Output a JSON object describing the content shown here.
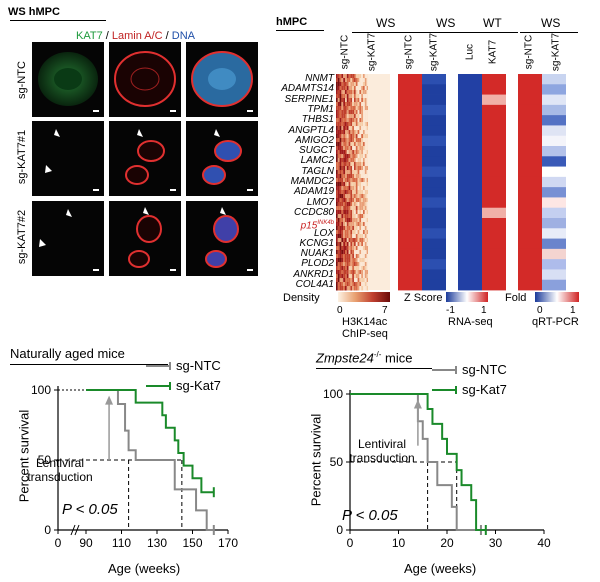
{
  "panelA": {
    "title": "WS hMPC",
    "channels": [
      {
        "label": "KAT7",
        "color": "#1e9a3c"
      },
      {
        "label": "Lamin A/C",
        "color": "#c02222"
      },
      {
        "label": "DNA",
        "color": "#1f4fa8"
      }
    ],
    "sep": " / ",
    "rows": [
      "sg-NTC",
      "sg-KAT7#1",
      "sg-KAT7#2"
    ]
  },
  "panelB": {
    "title": "hMPC",
    "group_headers": [
      "WS",
      "WS",
      "WT",
      "WS"
    ],
    "columns": [
      "sg-NTC",
      "sg-KAT7",
      "sg-NTC",
      "sg-KAT7",
      "Luc",
      "KAT7",
      "sg-NTC",
      "sg-KAT7"
    ],
    "genes": [
      "NNMT",
      "ADAMTS14",
      "SERPINE1",
      "TPM1",
      "THBS1",
      "ANGPTL4",
      "AMIGO2",
      "SUGCT",
      "LAMC2",
      "TAGLN",
      "MAMDC2",
      "ADAM19",
      "LMO7",
      "CCDC80",
      "p15INK4b",
      "LOX",
      "KCNG1",
      "NUAK1",
      "PLOD2",
      "ANKRD1",
      "COL4A1"
    ],
    "gene_p15_main": "p15",
    "gene_p15_sup": "INK4b",
    "legends": {
      "density": {
        "title": "Density",
        "min": "0",
        "max": "7",
        "caption1": "H3K14ac",
        "caption2": "ChIP-seq"
      },
      "zscore": {
        "title": "Z Score",
        "min": "-1",
        "max": "1",
        "caption": "RNA-seq"
      },
      "fold": {
        "title": "Fold",
        "min": "0",
        "max": "1",
        "caption": "qRT-PCR"
      }
    }
  },
  "panelC": {
    "title": "Naturally aged mice",
    "legend": [
      {
        "label": "sg-NTC",
        "color": "#888888"
      },
      {
        "label": "sg-Kat7",
        "color": "#1a8a2a"
      }
    ],
    "annotation": "Lentiviral transduction",
    "annotation_line1": "Lentiviral",
    "annotation_line2": "transduction",
    "pvalue": "P < 0.05",
    "ylabel": "Percent survival",
    "xlabel": "Age (weeks)",
    "yticks": [
      "0",
      "50",
      "100"
    ],
    "xticks": [
      "0",
      "90",
      "110",
      "130",
      "150",
      "170"
    ]
  },
  "panelD": {
    "title": "Zmpste24-/- mice",
    "title_main": "Zmpste24",
    "title_sup": "-/-",
    "title_rest": " mice",
    "legend": [
      {
        "label": "sg-NTC",
        "color": "#888888"
      },
      {
        "label": "sg-Kat7",
        "color": "#1a8a2a"
      }
    ],
    "annotation_line1": "Lentiviral",
    "annotation_line2": "transduction",
    "pvalue": "P < 0.05",
    "ylabel": "Percent survival",
    "xlabel": "Age (weeks)",
    "yticks": [
      "0",
      "50",
      "100"
    ],
    "xticks": [
      "0",
      "10",
      "20",
      "30",
      "40"
    ]
  },
  "chart_data": [
    {
      "type": "line",
      "title": "Naturally aged mice",
      "xlabel": "Age (weeks)",
      "ylabel": "Percent survival",
      "xlim": [
        90,
        170
      ],
      "ylim": [
        0,
        100
      ],
      "series": [
        {
          "name": "sg-NTC",
          "color": "#888888",
          "x": [
            90,
            108,
            108,
            112,
            112,
            114,
            114,
            118,
            118,
            140,
            140,
            152,
            152,
            158,
            158,
            162
          ],
          "y": [
            100,
            100,
            90,
            90,
            71,
            71,
            57,
            57,
            50,
            50,
            29,
            29,
            14,
            14,
            0,
            0
          ]
        },
        {
          "name": "sg-Kat7",
          "color": "#1a8a2a",
          "x": [
            90,
            118,
            118,
            133,
            133,
            135,
            135,
            140,
            140,
            142,
            142,
            145,
            145,
            150,
            150,
            155,
            155,
            162
          ],
          "y": [
            100,
            100,
            91,
            91,
            82,
            82,
            73,
            73,
            64,
            64,
            55,
            55,
            46,
            46,
            37,
            37,
            27,
            27
          ]
        }
      ]
    },
    {
      "type": "line",
      "title": "Zmpste24-/- mice",
      "xlabel": "Age (weeks)",
      "ylabel": "Percent survival",
      "xlim": [
        0,
        40
      ],
      "ylim": [
        0,
        100
      ],
      "series": [
        {
          "name": "sg-NTC",
          "color": "#888888",
          "x": [
            0,
            14,
            14,
            15,
            15,
            16,
            16,
            18,
            18,
            21,
            21,
            22,
            22,
            27
          ],
          "y": [
            100,
            100,
            80,
            80,
            67,
            67,
            50,
            50,
            33,
            33,
            17,
            17,
            0,
            0
          ]
        },
        {
          "name": "sg-Kat7",
          "color": "#1a8a2a",
          "x": [
            0,
            16,
            16,
            17,
            17,
            19,
            19,
            20,
            20,
            22,
            22,
            23,
            23,
            25,
            25,
            26,
            26,
            28
          ],
          "y": [
            100,
            100,
            89,
            89,
            78,
            78,
            67,
            67,
            56,
            56,
            44,
            44,
            33,
            33,
            22,
            22,
            0,
            0
          ]
        }
      ]
    }
  ]
}
